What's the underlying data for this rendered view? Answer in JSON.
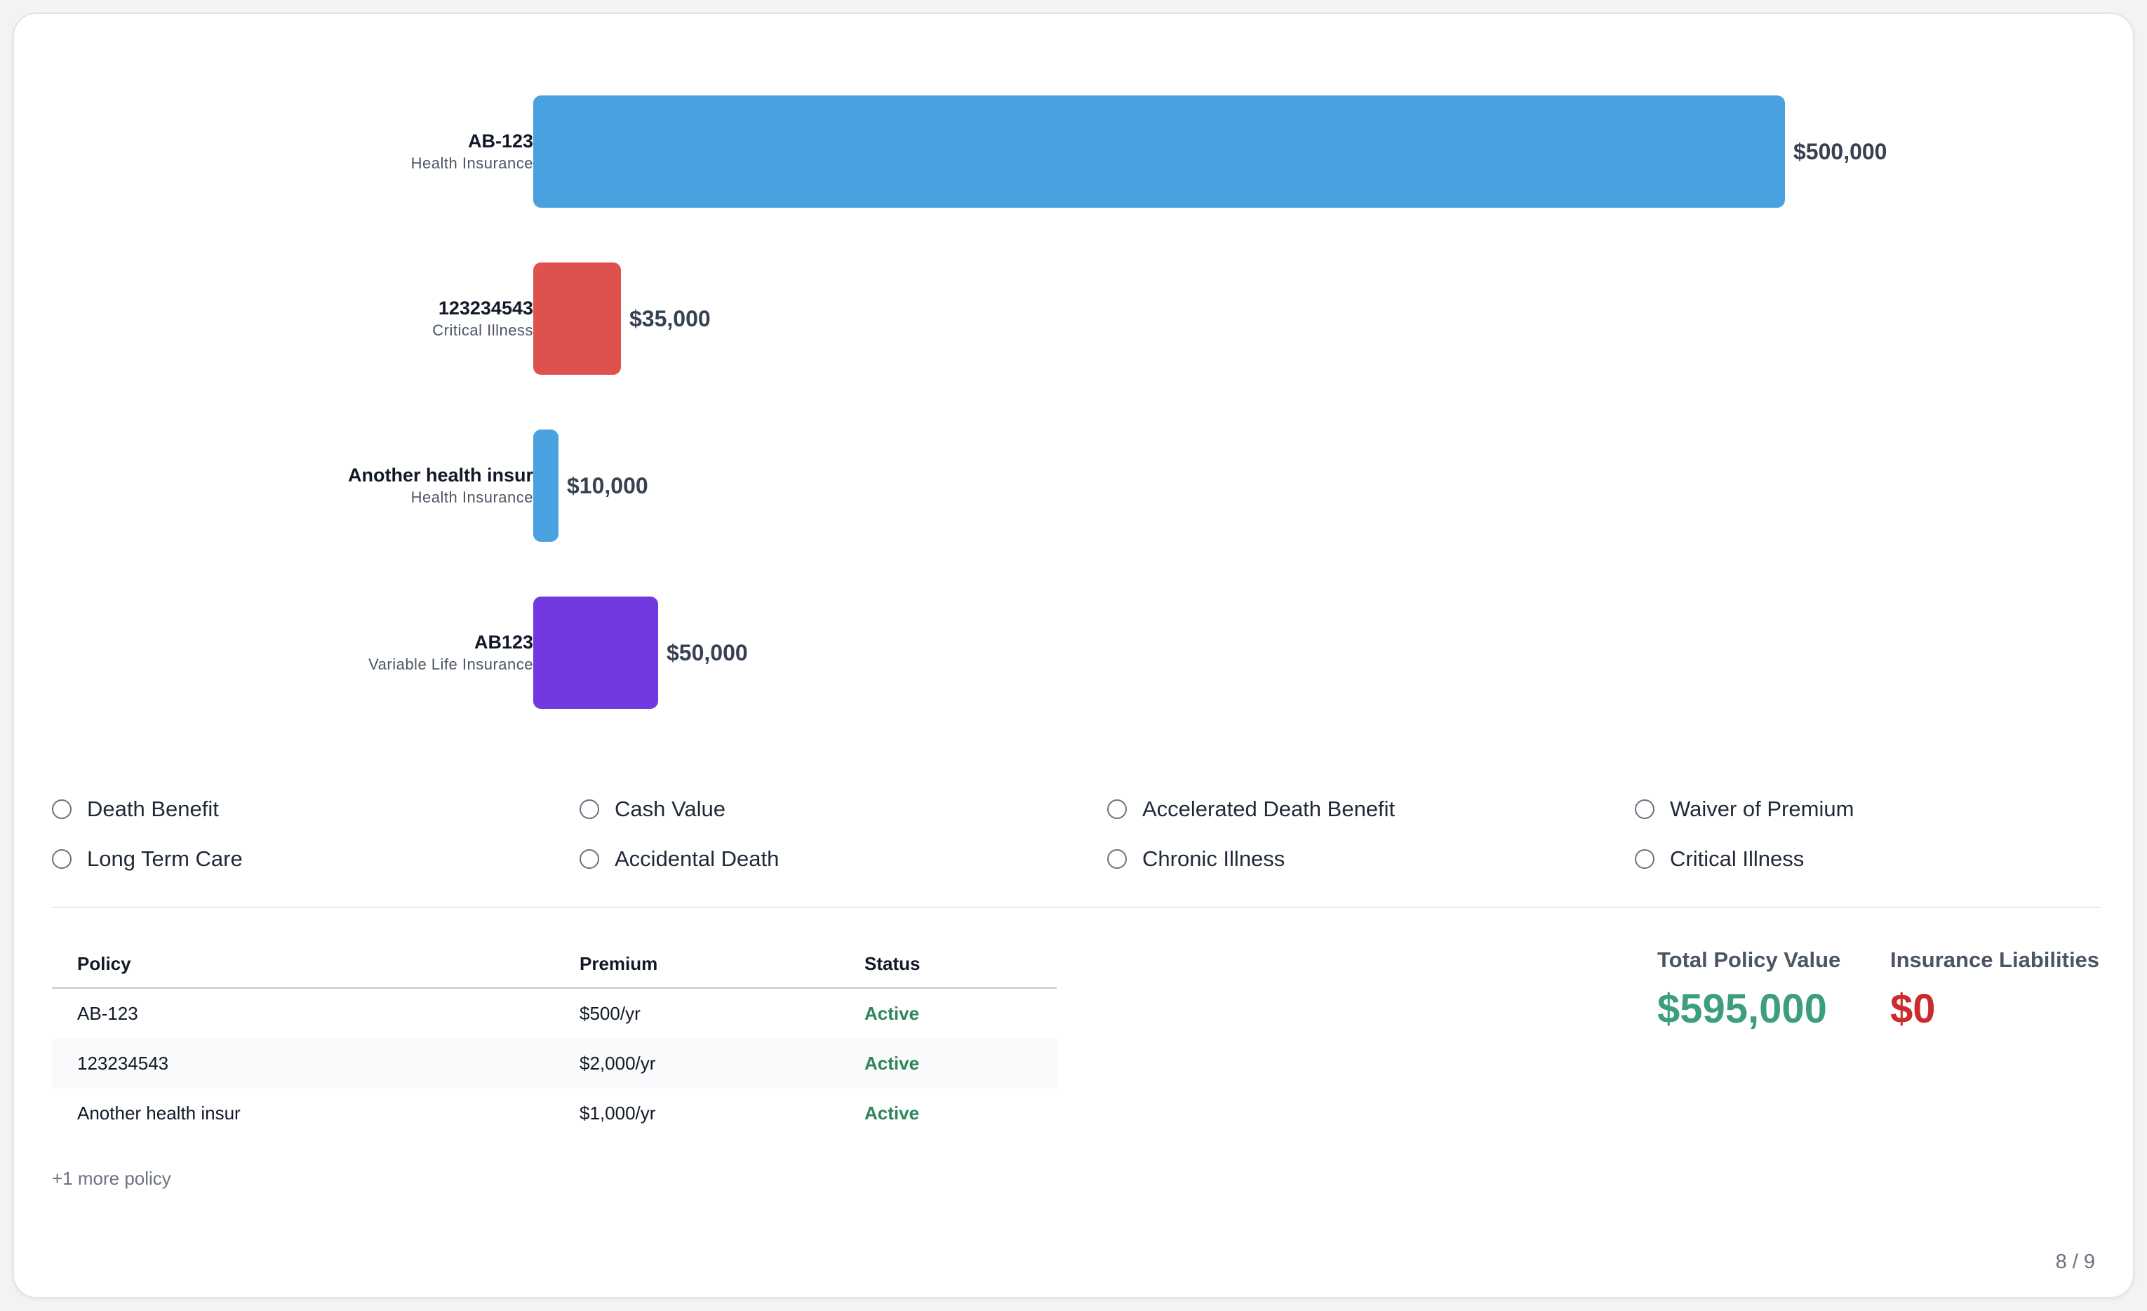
{
  "chart_data": {
    "type": "bar",
    "orientation": "horizontal",
    "categories": [
      "AB-123",
      "123234543",
      "Another health insur",
      "AB123"
    ],
    "subtitles": [
      "Health Insurance",
      "Critical Illness",
      "Health Insurance",
      "Variable Life Insurance"
    ],
    "values": [
      500000,
      35000,
      10000,
      50000
    ],
    "value_labels": [
      "$500,000",
      "$35,000",
      "$10,000",
      "$50,000"
    ],
    "colors": [
      "#4aa1e0",
      "#de524e",
      "#4aa1e0",
      "#7239e1"
    ],
    "xlim": [
      0,
      500000
    ]
  },
  "features": [
    "Death Benefit",
    "Cash Value",
    "Accelerated Death Benefit",
    "Waiver of Premium",
    "Long Term Care",
    "Accidental Death",
    "Chronic Illness",
    "Critical Illness"
  ],
  "table": {
    "headers": [
      "Policy",
      "Premium",
      "Status"
    ],
    "rows": [
      {
        "policy": "AB-123",
        "premium": "$500/yr",
        "status": "Active"
      },
      {
        "policy": "123234543",
        "premium": "$2,000/yr",
        "status": "Active"
      },
      {
        "policy": "Another health insur",
        "premium": "$1,000/yr",
        "status": "Active"
      }
    ],
    "more": "+1 more policy"
  },
  "summary": {
    "total_label": "Total Policy Value",
    "total_value": "$595,000",
    "total_color": "#3d9e7c",
    "liabilities_label": "Insurance Liabilities",
    "liabilities_value": "$0",
    "liabilities_color": "#cc2b2b"
  },
  "page_indicator": "8 / 9"
}
